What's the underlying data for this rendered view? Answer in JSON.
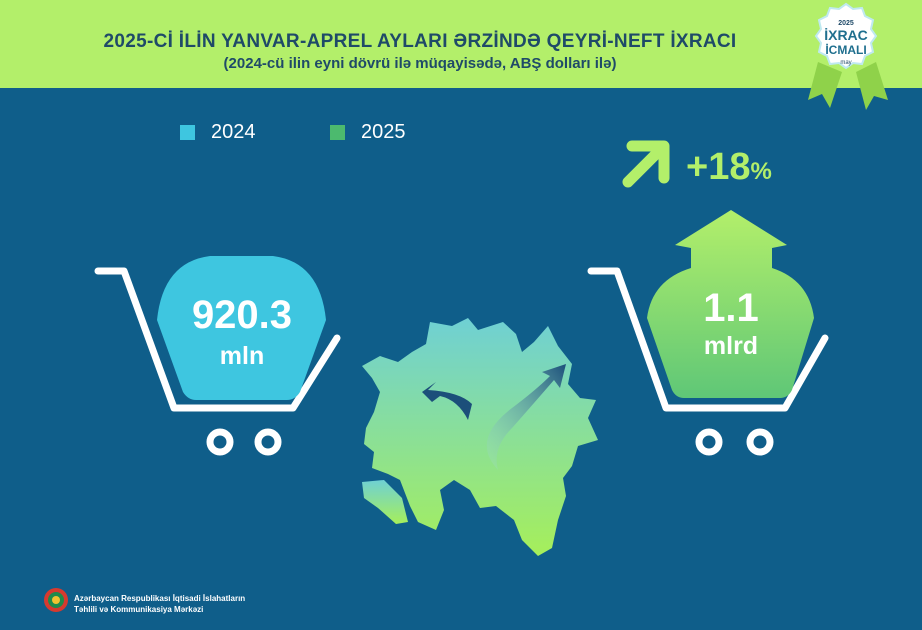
{
  "header": {
    "title": "2025-Cİ İLİN YANVAR-APREL AYLARI ƏRZİNDƏ QEYRİ-NEFT İXRACI",
    "subtitle": "(2024-cü ilin eyni dövrü ilə müqayisədə, ABŞ dolları ilə)"
  },
  "badge": {
    "year": "2025",
    "line1": "İXRAC",
    "line2": "İCMALI",
    "month": "may"
  },
  "chart_data": {
    "type": "bar",
    "title": "2025-Cİ İLİN YANVAR-APREL AYLARI ƏRZİNDƏ QEYRİ-NEFT İXRACI",
    "subtitle": "(2024-cü ilin eyni dövrü ilə müqayisədə, ABŞ dolları ilə)",
    "categories": [
      "2024",
      "2025"
    ],
    "values": [
      920.3,
      1100
    ],
    "series": [
      {
        "name": "2024",
        "color": "#3ec6e0",
        "value_label": "920.3",
        "unit_label": "mln"
      },
      {
        "name": "2025",
        "color": "#4cba6e",
        "value_label": "1.1",
        "unit_label": "mlrd"
      }
    ],
    "change_label": "+18",
    "change_suffix": "%",
    "legend_position": "top-left"
  },
  "colors": {
    "header_bg": "#b3ef6a",
    "page_bg": "#0f5e8a",
    "accent": "#b3ef6a"
  },
  "footer": {
    "line1": "Azərbaycan Respublikası İqtisadi İslahatların",
    "line2": "Təhlili və Kommunikasiya Mərkəzi"
  }
}
